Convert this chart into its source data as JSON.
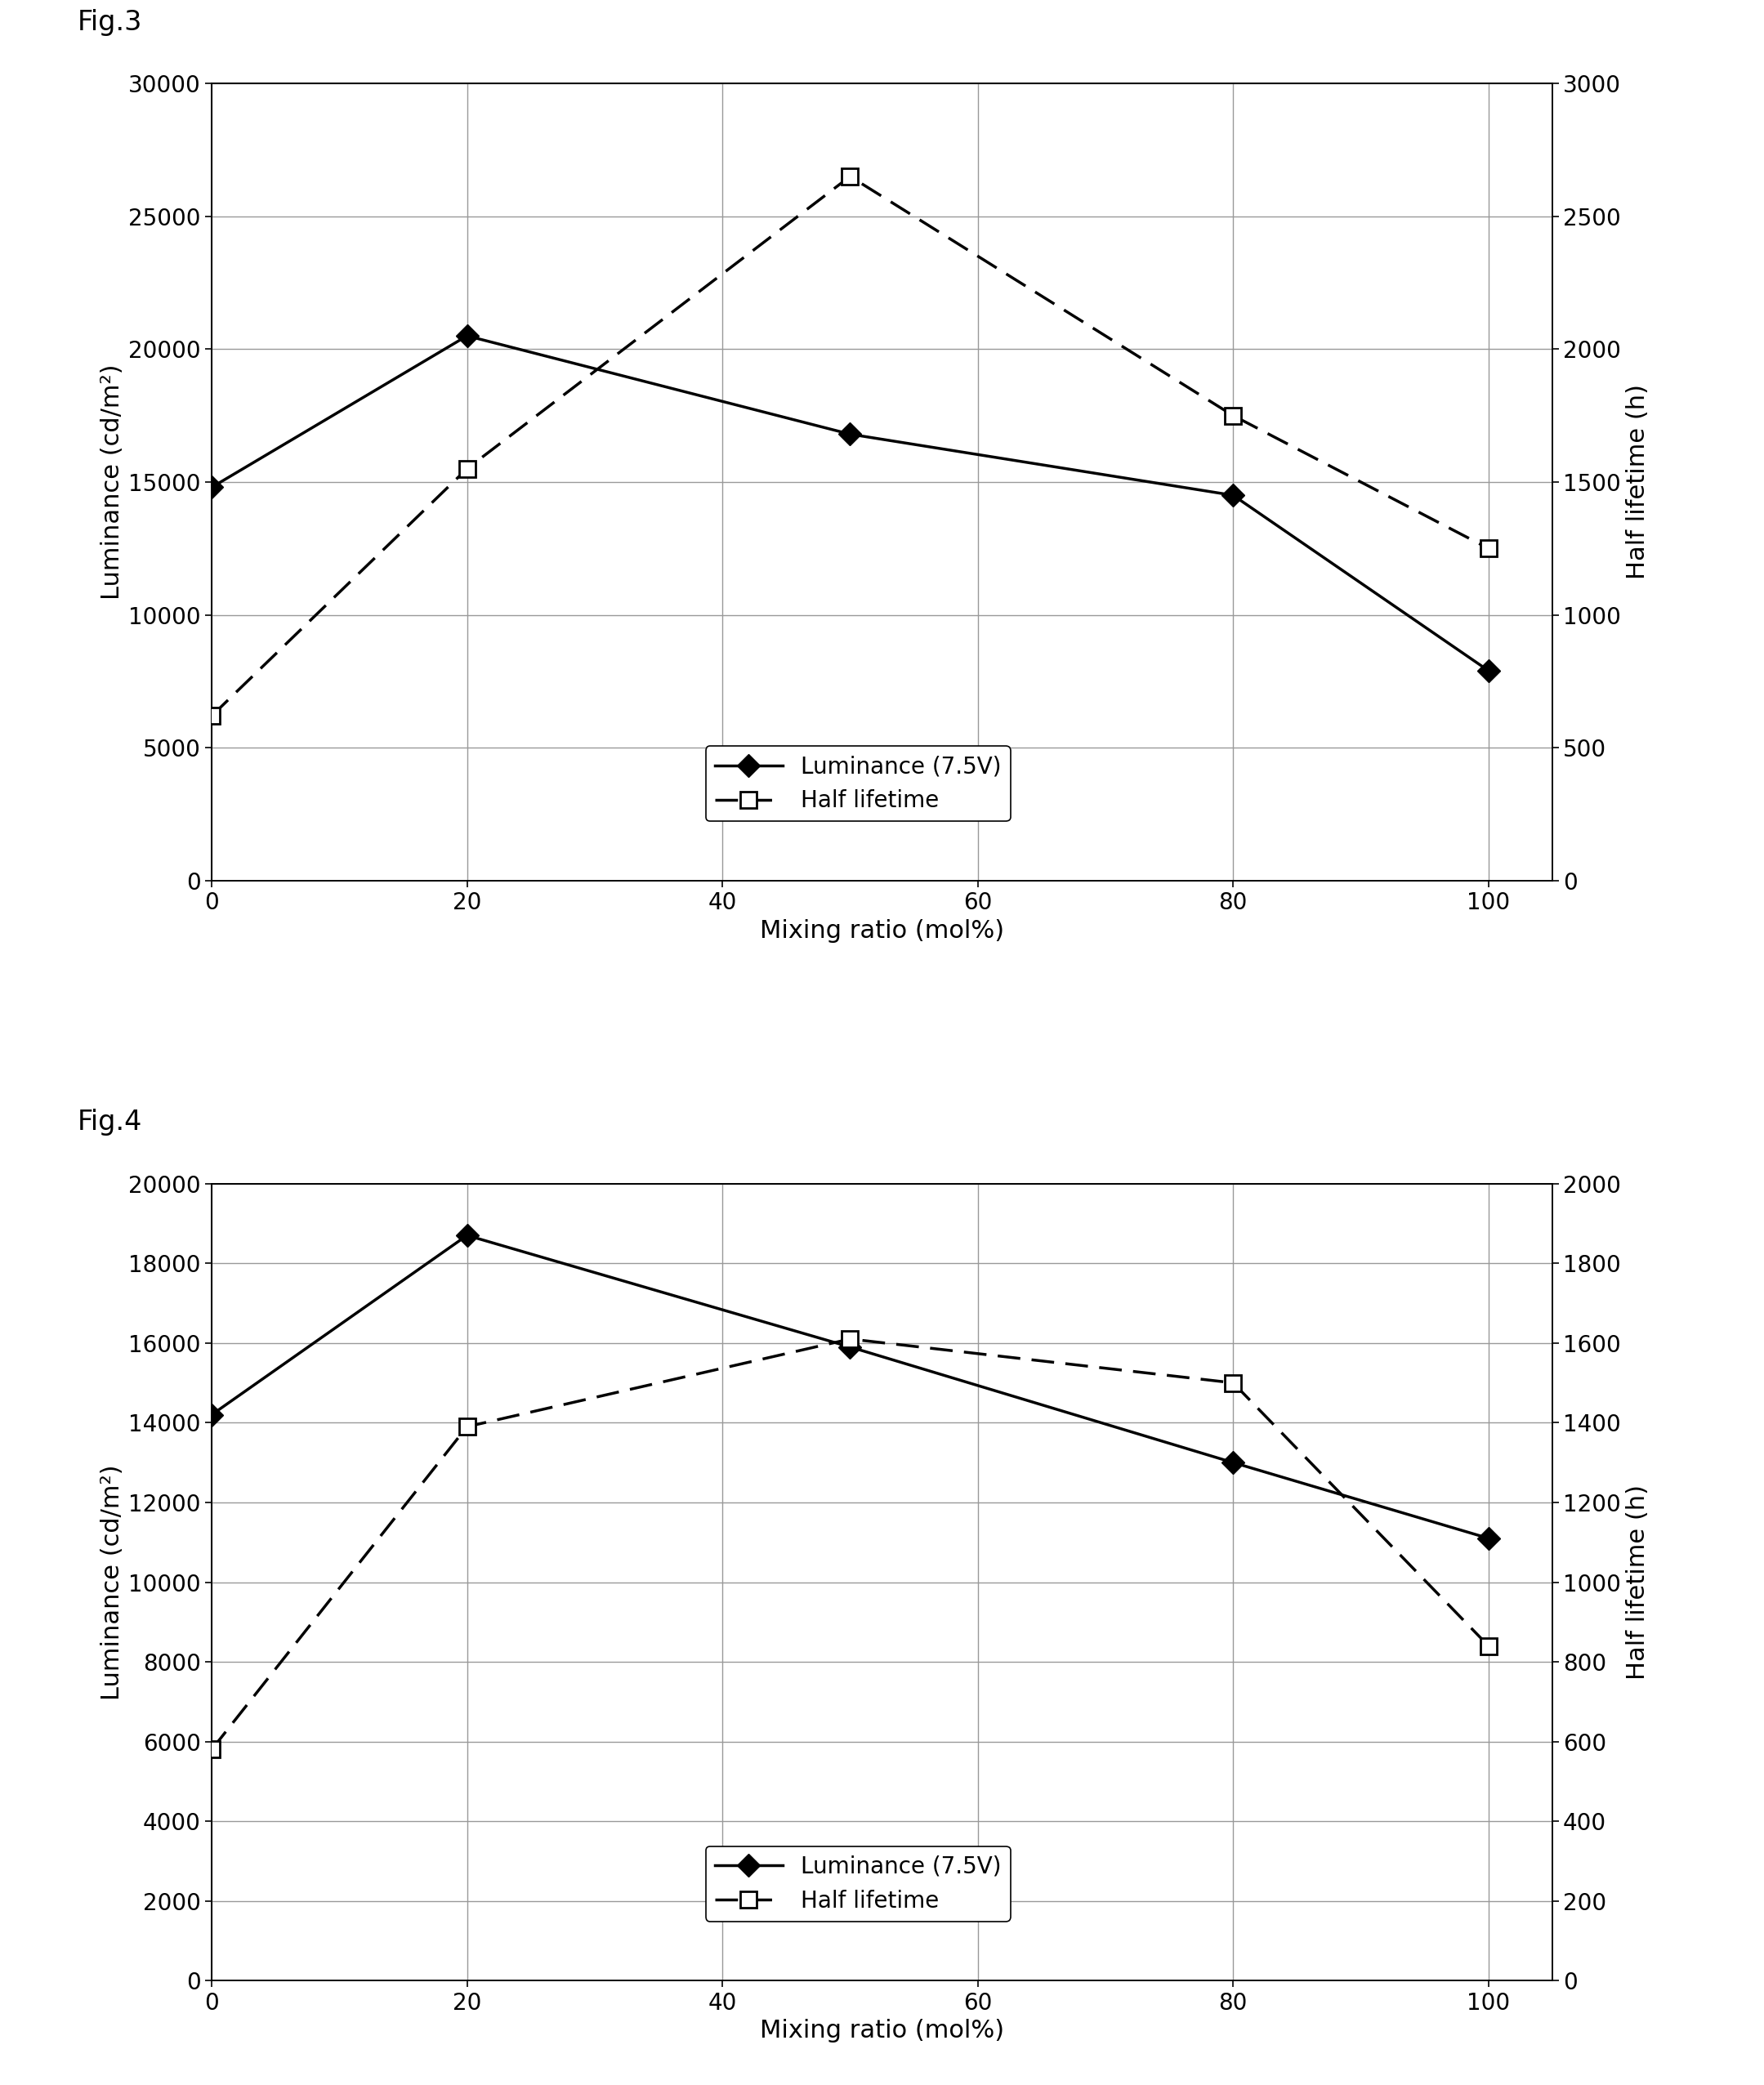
{
  "fig3": {
    "title": "Fig.3",
    "luminance": {
      "x": [
        0,
        20,
        50,
        80,
        100
      ],
      "y": [
        14800,
        20500,
        16800,
        14500,
        7900
      ]
    },
    "half_lifetime": {
      "x": [
        0,
        20,
        50,
        80,
        100
      ],
      "y": [
        620,
        1550,
        2650,
        1750,
        1250
      ]
    },
    "left_ylim": [
      0,
      30000
    ],
    "right_ylim": [
      0,
      3000
    ],
    "left_yticks": [
      0,
      5000,
      10000,
      15000,
      20000,
      25000,
      30000
    ],
    "right_yticks": [
      0,
      500,
      1000,
      1500,
      2000,
      2500,
      3000
    ],
    "xticks": [
      0,
      20,
      40,
      60,
      80,
      100
    ],
    "xlabel": "Mixing ratio (mol%)",
    "ylabel_left": "Luminance (cd/m²)",
    "ylabel_right": "Half lifetime (h)",
    "legend_luminance": "Luminance (7.5V)",
    "legend_half": "Half lifetime"
  },
  "fig4": {
    "title": "Fig.4",
    "luminance": {
      "x": [
        0,
        20,
        50,
        80,
        100
      ],
      "y": [
        14200,
        18700,
        15900,
        13000,
        11100
      ]
    },
    "half_lifetime": {
      "x": [
        0,
        20,
        50,
        80,
        100
      ],
      "y": [
        580,
        1390,
        1610,
        1500,
        840
      ]
    },
    "left_ylim": [
      0,
      20000
    ],
    "right_ylim": [
      0,
      2000
    ],
    "left_yticks": [
      0,
      2000,
      4000,
      6000,
      8000,
      10000,
      12000,
      14000,
      16000,
      18000,
      20000
    ],
    "right_yticks": [
      0,
      200,
      400,
      600,
      800,
      1000,
      1200,
      1400,
      1600,
      1800,
      2000
    ],
    "xticks": [
      0,
      20,
      40,
      60,
      80,
      100
    ],
    "xlabel": "Mixing ratio (mol%)",
    "ylabel_left": "Luminance (cd/m²)",
    "ylabel_right": "Half lifetime (h)",
    "legend_luminance": "Luminance (7.5V)",
    "legend_half": "Half lifetime"
  },
  "line_color": "#000000",
  "marker_luminance": "D",
  "marker_half": "s",
  "markersize_luminance": 14,
  "markersize_half": 14,
  "linewidth": 2.5,
  "grid_color": "#999999",
  "bg_color": "#ffffff",
  "fig_bg_color": "#ffffff",
  "font_size_label": 22,
  "font_size_tick": 20,
  "font_size_title": 24,
  "font_size_legend": 20
}
